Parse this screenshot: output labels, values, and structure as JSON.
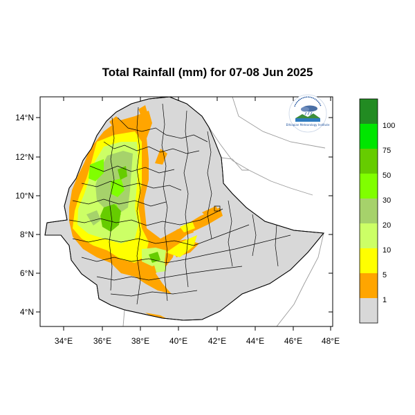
{
  "title": "Total Rainfall (mm) for 07-08 Jun 2025",
  "map": {
    "x_ticks": [
      "34°E",
      "36°E",
      "38°E",
      "40°E",
      "42°E",
      "44°E",
      "46°E",
      "48°E"
    ],
    "y_ticks": [
      "14°N",
      "12°N",
      "10°N",
      "8°N",
      "6°N",
      "4°N"
    ],
    "colors": {
      "country_fill": "#d8d8d8",
      "boundary": "#000000",
      "neighbor_line": "#9a9a9a"
    }
  },
  "legend": {
    "labels": [
      "100",
      "75",
      "50",
      "30",
      "20",
      "10",
      "5",
      "1"
    ],
    "colors": [
      "#228b22",
      "#00e600",
      "#66cc00",
      "#80ff00",
      "#a6d26b",
      "#ccff66",
      "#ffff00",
      "#ffa500",
      "#d8d8d8"
    ]
  },
  "logo": {
    "text": "Ethiopian Meteorology Institute"
  }
}
